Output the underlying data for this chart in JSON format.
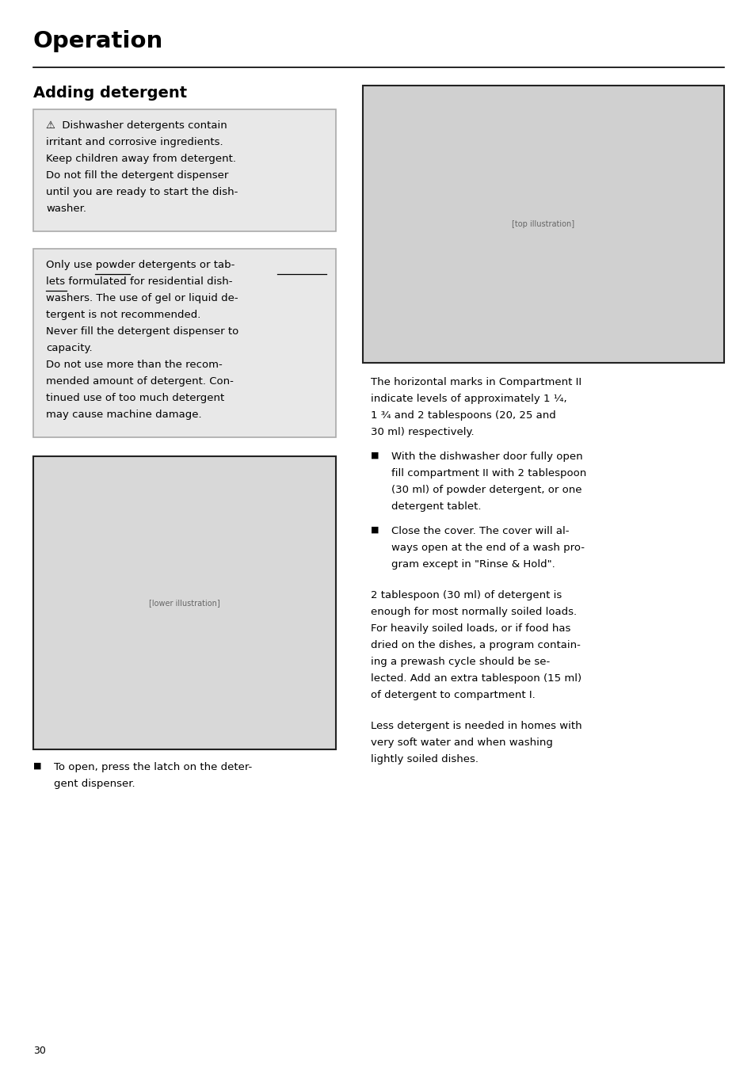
{
  "bg": "#ffffff",
  "page_num": "30",
  "title": "Operation",
  "subtitle": "Adding detergent",
  "warn_lines": [
    "⚠  Dishwasher detergents contain",
    "irritant and corrosive ingredients.",
    "Keep children away from detergent.",
    "Do not fill the detergent dispenser",
    "until you are ready to start the dish-",
    "washer."
  ],
  "info_lines": [
    "Only use powder detergents or tab-",
    "lets formulated for residential dish-",
    "washers. The use of gel or liquid de-",
    "tergent is not recommended.",
    "Never fill the detergent dispenser to",
    "capacity.",
    "Do not use more than the recom-",
    "mended amount of detergent. Con-",
    "tinued use of too much detergent",
    "may cause machine damage."
  ],
  "right_para1_lines": [
    "The horizontal marks in Compartment II",
    "indicate levels of approximately 1 ¹⁄₄,",
    "1 ³⁄₄ and 2 tablespoons (20, 25 and",
    "30 ml) respectively."
  ],
  "right_bullet1_lines": [
    "With the dishwasher door fully open",
    "fill compartment II with 2 tablespoon",
    "(30 ml) of powder detergent, or one",
    "detergent tablet."
  ],
  "right_bullet2_lines": [
    "Close the cover. The cover will al-",
    "ways open at the end of a wash pro-",
    "gram except in \"Rinse & Hold\"."
  ],
  "right_para2_lines": [
    "2 tablespoon (30 ml) of detergent is",
    "enough for most normally soiled loads.",
    "For heavily soiled loads, or if food has",
    "dried on the dishes, a program contain-",
    "ing a prewash cycle should be se-",
    "lected. Add an extra tablespoon (15 ml)",
    "of detergent to compartment I."
  ],
  "right_para3_lines": [
    "Less detergent is needed in homes with",
    "very soft water and when washing",
    "lightly soiled dishes."
  ],
  "left_bullet_lines": [
    "To open, press the latch on the deter-",
    "gent dispenser."
  ],
  "box_fill": "#e8e8e8",
  "box_edge": "#aaaaaa",
  "img_fill_top": "#d0d0d0",
  "img_fill_bot": "#d8d8d8",
  "img_edge": "#222222",
  "black": "#000000",
  "text_color": "#000000"
}
